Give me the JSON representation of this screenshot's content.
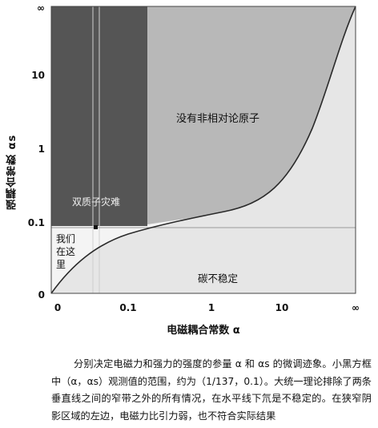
{
  "figure": {
    "regions": {
      "no_atoms": "没有非相对论原子",
      "diproton": "双质子灾难",
      "here": "我们\n在这\n里",
      "carbon_unstable": "碳不稳定"
    },
    "x_ticks": [
      "0",
      "0.1",
      "1",
      "10",
      "∞"
    ],
    "y_ticks": [
      "∞",
      "10",
      "1",
      "0.1",
      "0"
    ],
    "x_label": "电磁耦合常数 α",
    "y_label": "强耦合常数 αs"
  },
  "caption": "分别决定电磁力和强力的强度的参量 α 和 αs 的微调迹象。小黑方框中（α，αs）观测值的范围，约为（1/137，0.1）。大统一理论排除了两条垂直线之间的窄带之外的所有情况，在水平线下氘是不稳定的。在狭窄阴影区域的左边，电磁力比引力弱，也不符合实际结果",
  "colors": {
    "dark_region": "#555555",
    "medium_region": "#b5b5b5",
    "light_region": "#e6e6e6",
    "curve": "#2a2a2a"
  }
}
